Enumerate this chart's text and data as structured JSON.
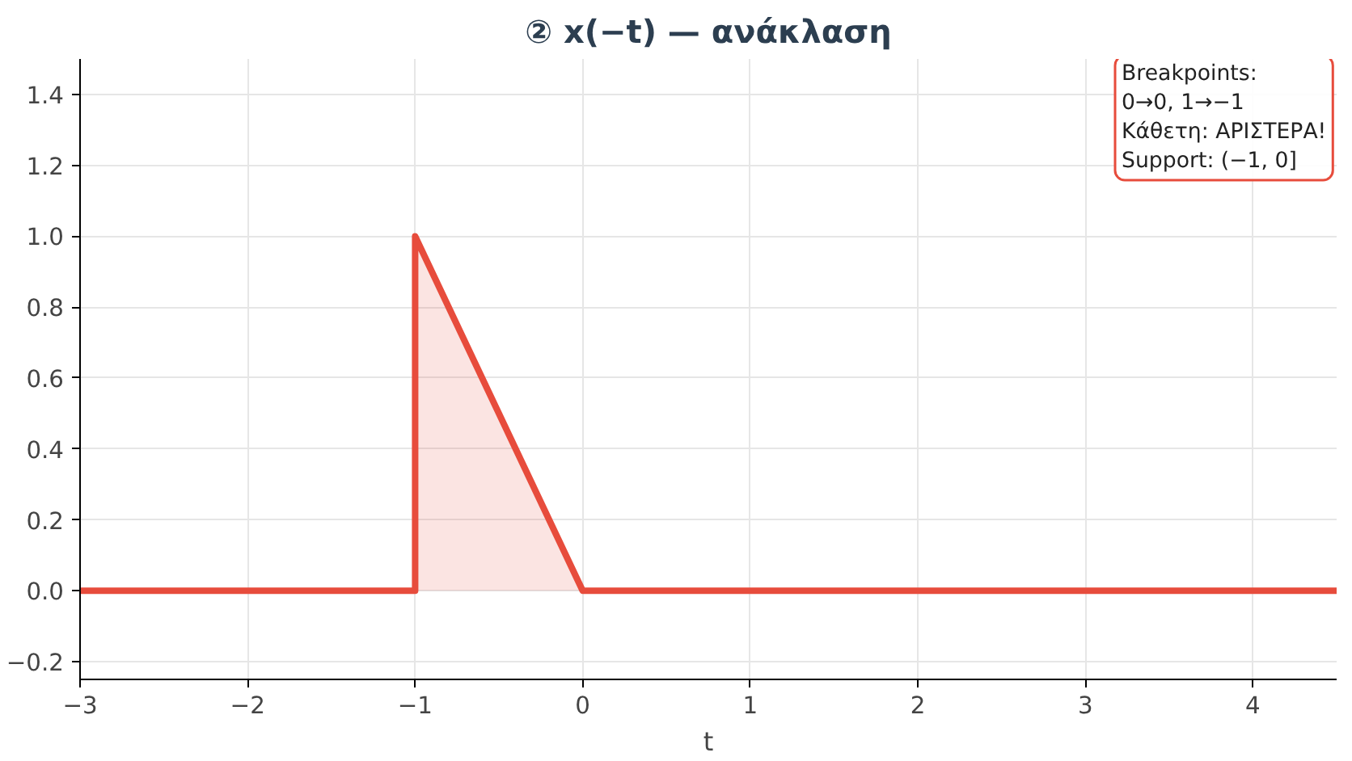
{
  "chart_data": {
    "type": "area",
    "title": "② x(−t) — ανάκλαση",
    "xlabel": "t",
    "x": [
      -3,
      -1,
      -1,
      0,
      4.5
    ],
    "series": [
      {
        "color": "#e74c3c",
        "values": [
          0,
          0,
          1,
          0,
          0
        ]
      }
    ],
    "xlim": [
      -3,
      4.5
    ],
    "ylim": [
      -0.25,
      1.5
    ],
    "xticks": [
      {
        "value": -3,
        "label": "−3"
      },
      {
        "value": -2,
        "label": "−2"
      },
      {
        "value": -1,
        "label": "−1"
      },
      0,
      1,
      2,
      3,
      4
    ],
    "yticks": [
      {
        "value": -0.2,
        "label": "−0.2"
      },
      {
        "value": 0,
        "label": "0.0"
      },
      0.2,
      0.4,
      0.6,
      0.8,
      {
        "value": 1,
        "label": "1.0"
      },
      1.2,
      1.4
    ],
    "annotations": [
      "Breakpoints:\n0→0, 1→−1\nΚάθετη: ΑΡΙΣΤΕΡΑ!\nSupport: (−1, 0]"
    ],
    "grid": true
  }
}
